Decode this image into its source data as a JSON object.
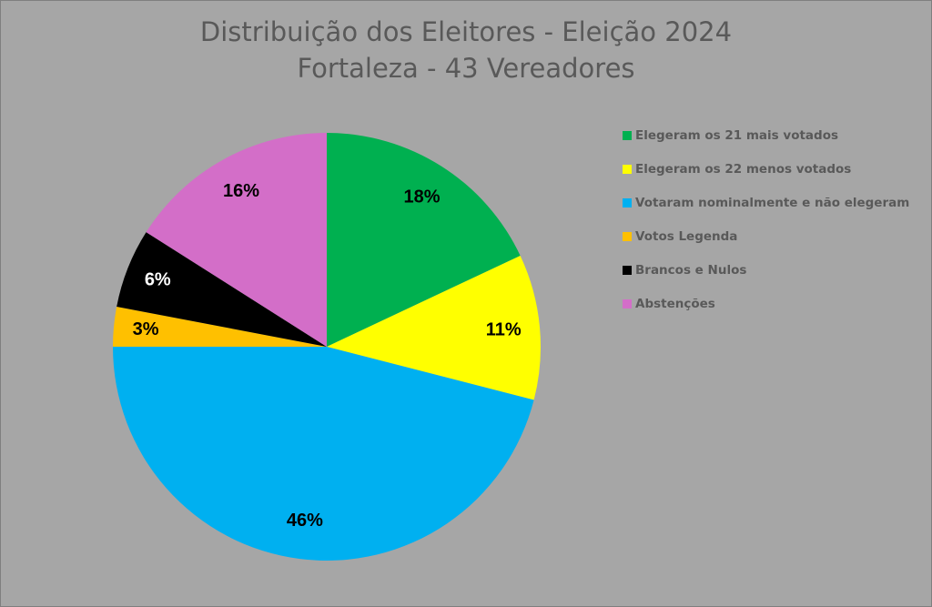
{
  "chart_data": {
    "type": "pie",
    "title": "Distribuição dos Eleitores - Eleição 2024",
    "subtitle": "Fortaleza - 43 Vereadores",
    "legend_position": "right",
    "slices": [
      {
        "name": "Elegeram os 21 mais votados",
        "value": 18,
        "label": "18%",
        "color": "#00b050",
        "label_color": "#000000"
      },
      {
        "name": "Elegeram os 22 menos votados",
        "value": 11,
        "label": "11%",
        "color": "#ffff00",
        "label_color": "#000000"
      },
      {
        "name": "Votaram nominalmente e não elegeram",
        "value": 46,
        "label": "46%",
        "color": "#00b0f0",
        "label_color": "#000000"
      },
      {
        "name": "Votos Legenda",
        "value": 3,
        "label": "3%",
        "color": "#ffc000",
        "label_color": "#000000"
      },
      {
        "name": "Brancos e Nulos",
        "value": 6,
        "label": "6%",
        "color": "#000000",
        "label_color": "#ffffff"
      },
      {
        "name": "Abstenções",
        "value": 16,
        "label": "16%",
        "color": "#d36ec8",
        "label_color": "#000000"
      }
    ]
  }
}
